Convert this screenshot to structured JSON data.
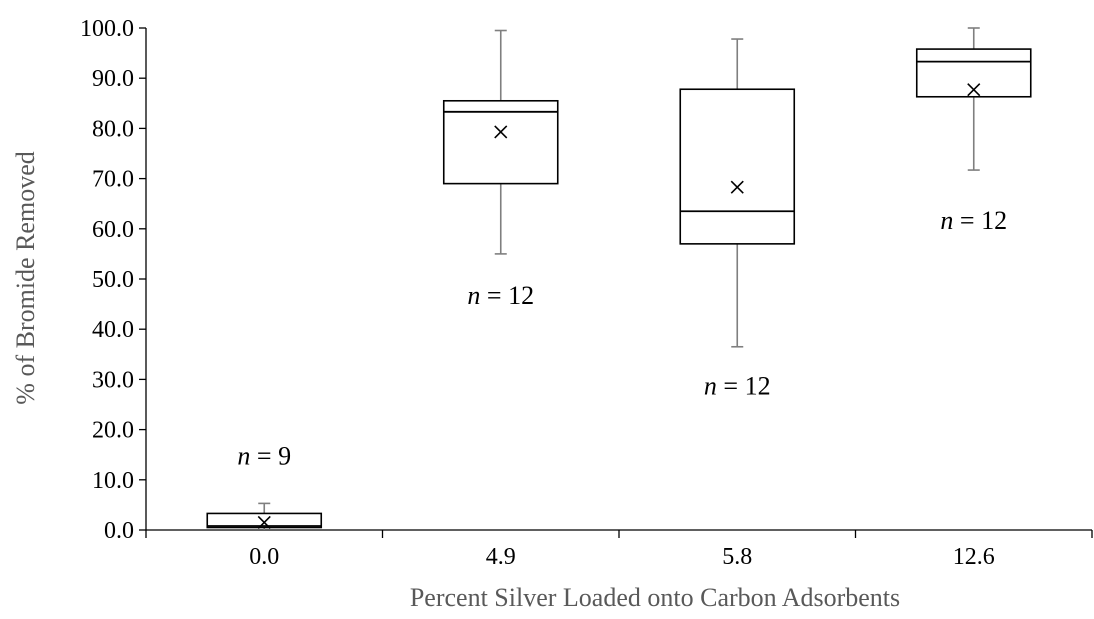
{
  "chart_data": {
    "type": "box",
    "title": "",
    "xlabel": "Percent Silver Loaded onto Carbon Adsorbents",
    "ylabel": "% of Bromide Removed",
    "ylim": [
      0,
      100
    ],
    "ytick_step": 10,
    "ytick_labels": [
      "0.0",
      "10.0",
      "20.0",
      "30.0",
      "40.0",
      "50.0",
      "60.0",
      "70.0",
      "80.0",
      "90.0",
      "100.0"
    ],
    "grid": false,
    "legend": "none",
    "categories": [
      "0.0",
      "4.9",
      "5.8",
      "12.6"
    ],
    "boxes": [
      {
        "category": "0.0",
        "min": 0.0,
        "q1": 0.5,
        "median": 0.8,
        "q3": 3.3,
        "max": 5.3,
        "mean": 1.5,
        "n_label": "9",
        "n_label_y": 13
      },
      {
        "category": "4.9",
        "min": 55.0,
        "q1": 69.0,
        "median": 83.3,
        "q3": 85.5,
        "max": 99.5,
        "mean": 79.3,
        "n_label": "12",
        "n_label_y": 45
      },
      {
        "category": "5.8",
        "min": 36.5,
        "q1": 57.0,
        "median": 63.5,
        "q3": 87.8,
        "max": 97.8,
        "mean": 68.3,
        "n_label": "12",
        "n_label_y": 27
      },
      {
        "category": "12.6",
        "min": 71.7,
        "q1": 86.3,
        "median": 93.3,
        "q3": 95.8,
        "max": 100.0,
        "mean": 87.7,
        "n_label": "12",
        "n_label_y": 60
      }
    ]
  }
}
